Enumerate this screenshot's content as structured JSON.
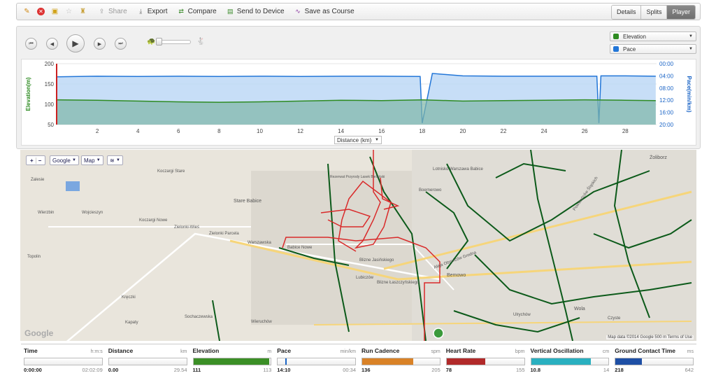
{
  "toolbar": {
    "icons": [
      "edit-icon",
      "delete-icon",
      "lock-icon",
      "star-icon",
      "badge-icon"
    ],
    "share_label": "Share",
    "export_label": "Export",
    "compare_label": "Compare",
    "send_label": "Send to Device",
    "course_label": "Save as Course",
    "tabs": [
      {
        "label": "Details",
        "active": false
      },
      {
        "label": "Splits",
        "active": false
      },
      {
        "label": "Player",
        "active": true
      }
    ]
  },
  "player": {
    "dropdowns": [
      {
        "label": "Elevation",
        "color": "#2e8b22"
      },
      {
        "label": "Pace",
        "color": "#2276d8"
      }
    ],
    "x_axis_select": "Distance (km)"
  },
  "chart_data": {
    "type": "area",
    "xlabel": "Distance (km)",
    "ylabel_left": "Elevation(m)",
    "ylabel_right": "Pace(min/km)",
    "x_ticks": [
      2,
      4,
      6,
      8,
      10,
      12,
      14,
      16,
      18,
      20,
      22,
      24,
      26,
      28
    ],
    "y_left_ticks": [
      200,
      150,
      100,
      50
    ],
    "y_right_ticks": [
      "00:00",
      "04:00",
      "08:00",
      "12:00",
      "16:00",
      "20:00"
    ],
    "xlim": [
      0,
      29.54
    ],
    "ylim_left": [
      50,
      200
    ],
    "ylim_right_min": [
      0,
      20
    ],
    "series": [
      {
        "name": "Elevation",
        "color": "#2e8b22",
        "x": [
          0,
          2,
          4,
          6,
          8,
          10,
          12,
          14,
          16,
          18,
          20,
          22,
          24,
          26,
          28,
          29.5
        ],
        "values": [
          111,
          110,
          108,
          106,
          105,
          106,
          108,
          110,
          109,
          111,
          108,
          109,
          110,
          111,
          110,
          109
        ]
      },
      {
        "name": "Pace",
        "color": "#2276d8",
        "x": [
          0,
          2,
          4,
          6,
          8,
          10,
          12,
          14,
          16,
          17.9,
          18.0,
          18.5,
          20,
          22,
          24,
          26.6,
          26.7,
          26.8,
          28,
          29.5
        ],
        "values": [
          4.3,
          4.1,
          4.2,
          4.1,
          4.2,
          4.1,
          4.2,
          4.1,
          4.1,
          4.2,
          19.5,
          3.2,
          4.0,
          4.1,
          4.1,
          4.1,
          19.5,
          4.0,
          4.0,
          4.1
        ]
      }
    ]
  },
  "map": {
    "zoom_in": "+",
    "zoom_out": "−",
    "provider": "Google",
    "type": "Map",
    "layers_icon": "layers-icon",
    "labels": [
      "Zalesie",
      "Koczargi Stare",
      "Stare Babice",
      "Wierzbin",
      "Wojcieszyn",
      "Koczargi Nowe",
      "Zielonki-Wieś",
      "Zielonki Parcela",
      "Warszawska",
      "Babice Nowe",
      "Lubiczów",
      "Blizne Jasińskiego",
      "Blizne Łaszczyńskiego",
      "Bemowo",
      "Aleja Obrońców Grodna",
      "Boernerowo",
      "Lotnisko Warszawa Babice",
      "Topolin",
      "Kręczki",
      "Kapaty",
      "Sochaczewska",
      "Wieruchów",
      "Ulrychów",
      "Wola",
      "Żoliborz",
      "Czyste",
      "Powstańców Śląskich",
      "Rezerwat Przyrody Lasek Bielański"
    ],
    "footer": "Map data ©2014 Google  500 m  Terms of Use",
    "logo": "Google"
  },
  "metrics": [
    {
      "name": "Time",
      "unit": "h:m:s",
      "current": "0:00:00",
      "max": "02:02:09",
      "fill": 0,
      "color": "#ccc"
    },
    {
      "name": "Distance",
      "unit": "km",
      "current": "0.00",
      "max": "29.54",
      "fill": 0,
      "color": "#ccc"
    },
    {
      "name": "Elevation",
      "unit": "m",
      "current": "111",
      "max": "113",
      "fill": 0.98,
      "color": "#3b8f26"
    },
    {
      "name": "Pace",
      "unit": "min/km",
      "current": "14:10",
      "max": "00:34",
      "fill": 0.1,
      "color": "#1a64c6"
    },
    {
      "name": "Run Cadence",
      "unit": "spm",
      "current": "136",
      "max": "205",
      "fill": 0.66,
      "color": "#d98227"
    },
    {
      "name": "Heart Rate",
      "unit": "bpm",
      "current": "78",
      "max": "155",
      "fill": 0.5,
      "color": "#b12a2a"
    },
    {
      "name": "Vertical Oscillation",
      "unit": "cm",
      "current": "10.8",
      "max": "14",
      "fill": 0.77,
      "color": "#2ab0c0"
    },
    {
      "name": "Ground Contact Time",
      "unit": "ms",
      "current": "218",
      "max": "642",
      "fill": 0.34,
      "color": "#1e4fa5"
    }
  ]
}
